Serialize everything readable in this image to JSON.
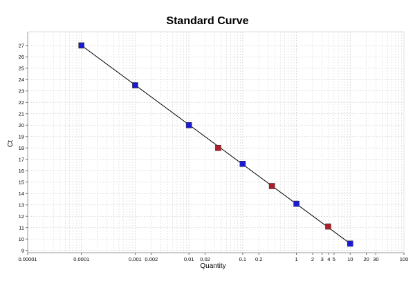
{
  "chart_data": {
    "type": "scatter",
    "title": "Standard Curve",
    "xlabel": "Quantity",
    "ylabel": "Ct",
    "x_scale": "log",
    "xlim": [
      1e-05,
      100
    ],
    "ylim": [
      8.8,
      28.2
    ],
    "grid": true,
    "x_ticks": [
      {
        "value": 1e-05,
        "label": "0.00001"
      },
      {
        "value": 0.0001,
        "label": "0.0001"
      },
      {
        "value": 0.001,
        "label": "0.001"
      },
      {
        "value": 0.002,
        "label": "0.002"
      },
      {
        "value": 0.01,
        "label": "0.01"
      },
      {
        "value": 0.02,
        "label": "0.02"
      },
      {
        "value": 0.1,
        "label": "0.1"
      },
      {
        "value": 0.2,
        "label": "0.2"
      },
      {
        "value": 1,
        "label": "1"
      },
      {
        "value": 2,
        "label": "2"
      },
      {
        "value": 3,
        "label": "3"
      },
      {
        "value": 4,
        "label": "4"
      },
      {
        "value": 5,
        "label": "5"
      },
      {
        "value": 10,
        "label": "10"
      },
      {
        "value": 20,
        "label": "20"
      },
      {
        "value": 30,
        "label": "30"
      },
      {
        "value": 100,
        "label": "100"
      }
    ],
    "y_ticks": [
      9,
      10,
      11,
      12,
      13,
      14,
      15,
      16,
      17,
      18,
      19,
      20,
      21,
      22,
      23,
      24,
      25,
      26,
      27
    ],
    "series": [
      {
        "color": "#1a1ad6",
        "marker": "square",
        "points": [
          {
            "x": 0.0001,
            "y": 27.0
          },
          {
            "x": 0.001,
            "y": 23.5
          },
          {
            "x": 0.01,
            "y": 20.0
          },
          {
            "x": 0.1,
            "y": 16.6
          },
          {
            "x": 1,
            "y": 13.1
          },
          {
            "x": 10,
            "y": 9.6
          }
        ]
      },
      {
        "color": "#b01e2a",
        "marker": "square",
        "points": [
          {
            "x": 0.035,
            "y": 18.0
          },
          {
            "x": 0.35,
            "y": 14.65
          },
          {
            "x": 3.9,
            "y": 11.1
          }
        ]
      }
    ],
    "fit_line": {
      "x": [
        0.0001,
        10
      ],
      "y": [
        27.0,
        9.6
      ],
      "color": "#000000"
    }
  }
}
